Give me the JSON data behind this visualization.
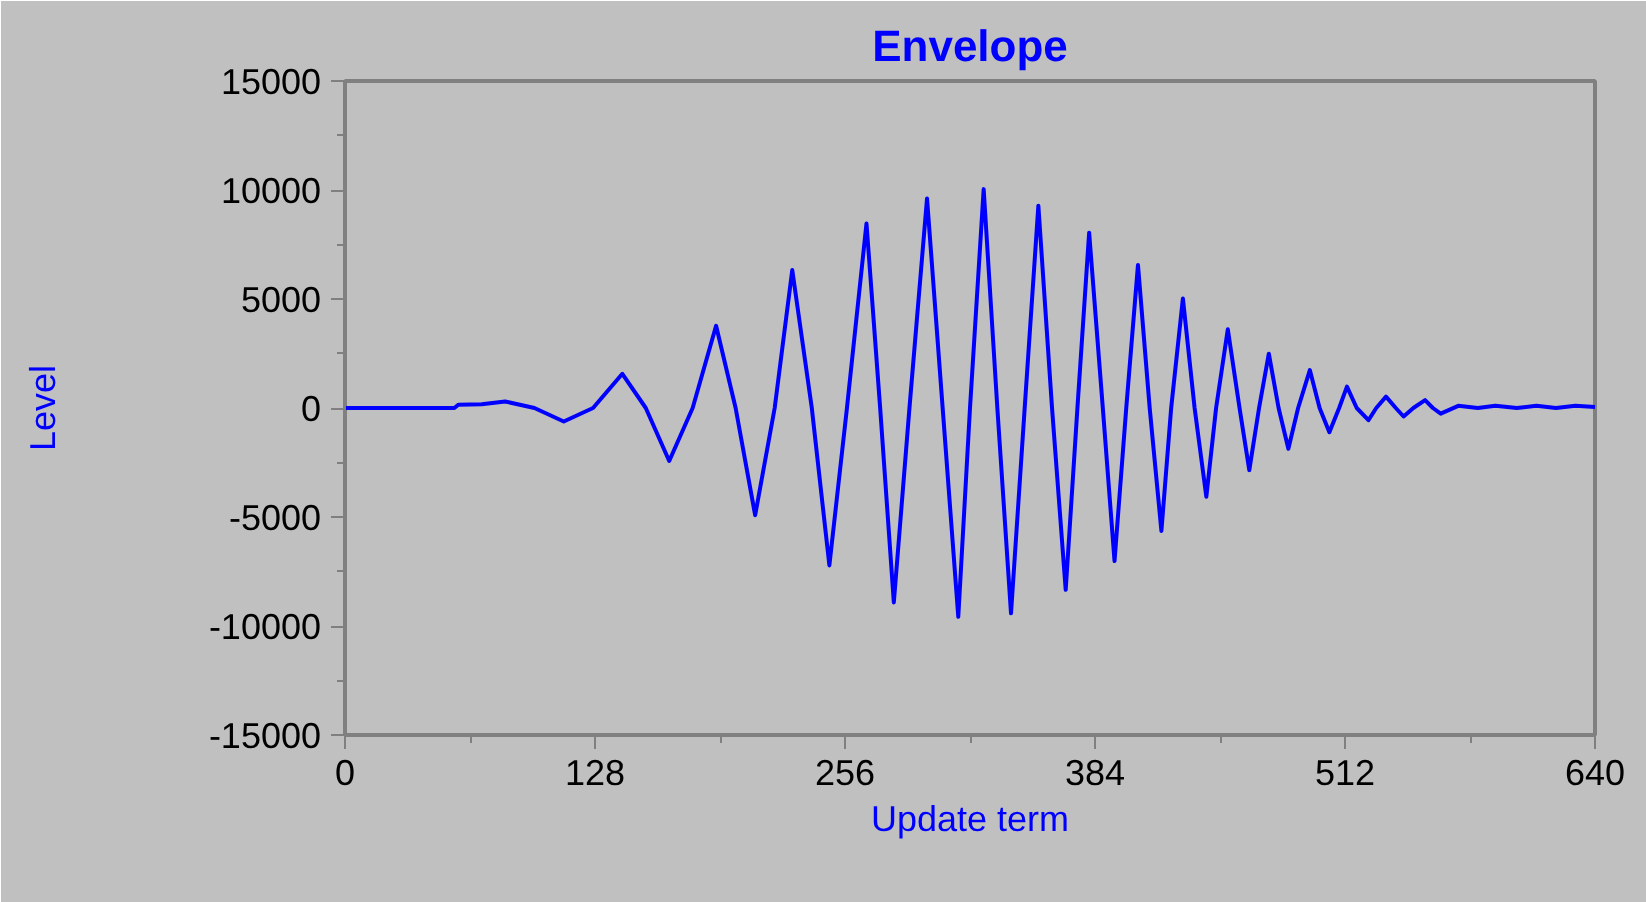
{
  "chart_data": {
    "type": "line",
    "title": "Envelope",
    "xlabel": "Update term",
    "ylabel": "Level",
    "color": "#0000ff",
    "grid": false,
    "x": [
      0,
      56,
      58,
      70,
      82,
      97,
      112,
      127,
      142,
      154,
      166,
      178,
      190,
      200,
      210,
      220,
      229,
      239,
      248,
      257,
      267,
      274,
      281,
      289,
      298,
      306,
      314,
      320,
      327,
      334,
      341,
      348,
      355,
      362,
      369,
      375,
      381,
      388,
      394,
      400,
      406,
      412,
      418,
      423,
      429,
      435,
      441,
      446,
      452,
      458,
      463,
      468,
      473,
      478,
      483,
      488,
      494,
      499,
      504,
      509,
      513,
      518,
      524,
      528,
      533,
      538,
      542,
      547,
      553,
      557,
      561,
      570,
      580,
      589,
      600,
      610,
      620,
      630,
      640
    ],
    "values": [
      0,
      0,
      150,
      170,
      300,
      0,
      -620,
      0,
      1570,
      0,
      -2430,
      0,
      3770,
      0,
      -4920,
      0,
      6330,
      0,
      -7220,
      0,
      8460,
      0,
      -8920,
      0,
      9610,
      0,
      -9580,
      0,
      10040,
      0,
      -9420,
      0,
      9280,
      0,
      -8340,
      0,
      8040,
      0,
      -7020,
      0,
      6560,
      0,
      -5640,
      0,
      5020,
      0,
      -4070,
      0,
      3610,
      0,
      -2850,
      0,
      2490,
      0,
      -1870,
      0,
      1740,
      0,
      -1110,
      0,
      980,
      0,
      -560,
      0,
      520,
      0,
      -390,
      0,
      360,
      0,
      -260,
      100,
      0,
      100,
      0,
      100,
      0,
      100,
      50
    ],
    "xlim": [
      0,
      640
    ],
    "ylim": [
      -15000,
      15000
    ],
    "xticks": [
      0,
      128,
      256,
      384,
      512,
      640
    ],
    "yticks": [
      -15000,
      -10000,
      -5000,
      0,
      5000,
      10000,
      15000
    ]
  }
}
